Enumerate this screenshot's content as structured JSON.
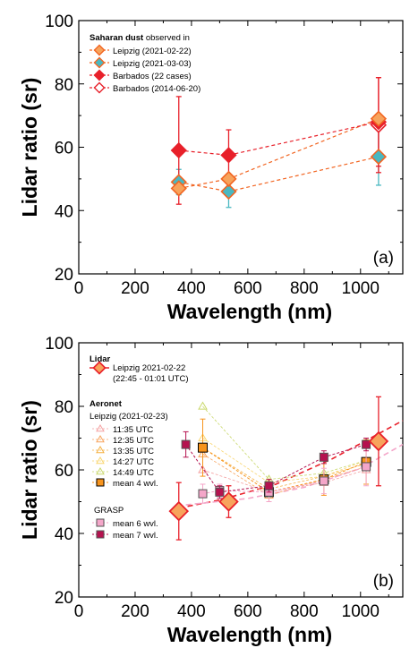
{
  "chart_data": [
    {
      "panel": "(a)",
      "type": "line",
      "xlabel": "Wavelength (nm)",
      "ylabel": "Lidar ratio (sr)",
      "xlim": [
        0,
        1150
      ],
      "ylim": [
        20,
        100
      ],
      "xticks": [
        0,
        200,
        400,
        600,
        800,
        1000
      ],
      "yticks": [
        20,
        40,
        60,
        80,
        100
      ],
      "legend_title_bold": "Saharan dust",
      "legend_title_rest": " observed in",
      "legend_position": "top-left",
      "series": [
        {
          "name": "Leipzig (2021-02-22)",
          "marker": "diamond",
          "fill": "#f7a35c",
          "edge": "#f26522",
          "line": "#f26522",
          "x": [
            355,
            532,
            1064
          ],
          "y": [
            47,
            50,
            69
          ],
          "err": [
            0,
            0,
            0
          ]
        },
        {
          "name": "Leipzig (2021-03-03)",
          "marker": "diamond",
          "fill": "#4ab8c1",
          "edge": "#f26522",
          "line": "#f26522",
          "x": [
            355,
            532,
            1064
          ],
          "y": [
            49,
            46,
            57
          ],
          "err": [
            4,
            5,
            9
          ]
        },
        {
          "name": "Barbados (22 cases)",
          "marker": "diamond",
          "fill": "#e8202a",
          "edge": "#e8202a",
          "line": "#e8202a",
          "x": [
            355,
            532,
            1064
          ],
          "y": [
            59,
            57.5,
            68
          ],
          "err": [
            17,
            8,
            14
          ]
        },
        {
          "name": "Barbados  (2014-06-20)",
          "marker": "diamond-open",
          "fill": "#ffffff",
          "edge": "#e8202a",
          "line": "#e8202a",
          "x": [
            1064
          ],
          "y": [
            67
          ],
          "err": [
            15
          ]
        }
      ]
    },
    {
      "panel": "(b)",
      "type": "line",
      "xlabel": "Wavelength (nm)",
      "ylabel": "Lidar ratio (sr)",
      "xlim": [
        0,
        1150
      ],
      "ylim": [
        20,
        100
      ],
      "xticks": [
        0,
        200,
        400,
        600,
        800,
        1000
      ],
      "yticks": [
        20,
        40,
        60,
        80,
        100
      ],
      "legend_position": "top-left",
      "legend": {
        "lidar_title": "Lidar",
        "lidar_entry": "Leipzig 2021-02-22",
        "lidar_entry2": "(22:45 - 01:01 UTC)",
        "aeronet_title": "Aeronet",
        "aeronet_sub": "Leipzig (2021-02-23)",
        "grasp_title": "GRASP"
      },
      "lidar": {
        "name": "Leipzig 2021-02-22",
        "x": [
          355,
          532,
          1064
        ],
        "y": [
          47,
          50,
          69
        ],
        "err": [
          9,
          5,
          14
        ],
        "color": "#e8202a",
        "fill": "#f7a35c"
      },
      "aeronet_series": [
        {
          "name": "11:35 UTC",
          "color": "#f4a0a0",
          "x": [
            440,
            675,
            870,
            1020
          ],
          "y": [
            60,
            53,
            56,
            60
          ]
        },
        {
          "name": "12:35 UTC",
          "color": "#f7a35c",
          "x": [
            440,
            675,
            870,
            1020
          ],
          "y": [
            65,
            52,
            57,
            61
          ]
        },
        {
          "name": "13:35 UTC",
          "color": "#f5b041",
          "x": [
            440,
            675,
            870,
            1020
          ],
          "y": [
            67,
            54,
            58,
            62
          ]
        },
        {
          "name": "14:27 UTC",
          "color": "#f9d56e",
          "x": [
            440,
            675,
            870,
            1020
          ],
          "y": [
            70,
            56,
            58,
            63
          ]
        },
        {
          "name": "14:49 UTC",
          "color": "#c9d86b",
          "x": [
            440,
            675,
            870,
            1020
          ],
          "y": [
            80,
            57,
            59,
            63
          ]
        }
      ],
      "aeronet_mean": {
        "name": "mean 4 wvl.",
        "color": "#f7941d",
        "edge": "#000000",
        "x": [
          440,
          675,
          870,
          1020
        ],
        "y": [
          67,
          53,
          57,
          62.5
        ],
        "err": [
          9,
          3,
          5,
          7
        ]
      },
      "grasp_series": [
        {
          "name": "mean 6 wvl.",
          "color": "#f4a6c9",
          "x": [
            440,
            500,
            675,
            870,
            1020
          ],
          "y": [
            52.5,
            53.5,
            53,
            56.5,
            61
          ],
          "err": [
            3,
            2,
            3,
            4,
            6
          ]
        },
        {
          "name": "mean 7 wvl.",
          "color": "#b5124f",
          "x": [
            380,
            500,
            675,
            870,
            1020
          ],
          "y": [
            68,
            53,
            55,
            64,
            68
          ],
          "err": [
            4,
            2,
            2,
            2,
            2
          ]
        }
      ],
      "fits": [
        {
          "color": "#e8202a",
          "x": [
            355,
            500,
            700,
            900,
            1150
          ],
          "y": [
            48,
            50.5,
            55.5,
            63.5,
            75.5
          ]
        },
        {
          "color": "#f4a6c9",
          "x": [
            380,
            600,
            800,
            1000,
            1150
          ],
          "y": [
            49,
            51,
            54.5,
            60.5,
            68
          ]
        }
      ]
    }
  ]
}
